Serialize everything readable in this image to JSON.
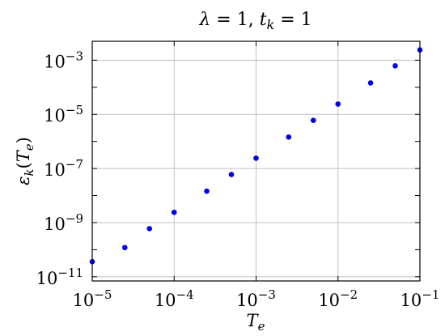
{
  "chart_data": {
    "type": "scatter",
    "title": "λ = 1, t_k = 1",
    "title_parts": [
      {
        "t": "λ",
        "italic": true
      },
      {
        "t": " = 1, ",
        "italic": false
      },
      {
        "t": "t",
        "italic": true
      },
      {
        "t": "k",
        "italic": true,
        "sub": true
      },
      {
        "t": " = 1",
        "italic": false
      }
    ],
    "xlabel": "T_e",
    "xlabel_parts": [
      {
        "t": "T",
        "italic": true
      },
      {
        "t": "e",
        "italic": true,
        "sub": true
      }
    ],
    "ylabel": "ε_k(T_e)",
    "ylabel_parts": [
      {
        "t": "ε",
        "italic": true
      },
      {
        "t": "k",
        "italic": true,
        "sub": true
      },
      {
        "t": "(",
        "italic": false
      },
      {
        "t": "T",
        "italic": true
      },
      {
        "t": "e",
        "italic": true,
        "sub": true
      },
      {
        "t": ")",
        "italic": false
      }
    ],
    "x_scale": "log",
    "y_scale": "log",
    "xlim": [
      1e-05,
      0.1
    ],
    "ylim": [
      7e-12,
      0.005
    ],
    "x_ticks": [
      {
        "value": 1e-05,
        "base": "10",
        "exp": "−5"
      },
      {
        "value": 0.0001,
        "base": "10",
        "exp": "−4"
      },
      {
        "value": 0.001,
        "base": "10",
        "exp": "−3"
      },
      {
        "value": 0.01,
        "base": "10",
        "exp": "−2"
      },
      {
        "value": 0.1,
        "base": "10",
        "exp": "−1"
      }
    ],
    "y_ticks": [
      {
        "value": 1e-11,
        "base": "10",
        "exp": "−11"
      },
      {
        "value": 1e-09,
        "base": "10",
        "exp": "−9"
      },
      {
        "value": 1e-07,
        "base": "10",
        "exp": "−7"
      },
      {
        "value": 1e-05,
        "base": "10",
        "exp": "−5"
      },
      {
        "value": 0.001,
        "base": "10",
        "exp": "−3"
      }
    ],
    "grid": true,
    "legend": "none",
    "series": [
      {
        "color": "#0000ee",
        "x": [
          1e-05,
          2.5e-05,
          5e-05,
          0.0001,
          0.00025,
          0.0005,
          0.001,
          0.0025,
          0.005,
          0.01,
          0.025,
          0.05,
          0.1
        ],
        "y": [
          3.6e-11,
          1.2e-10,
          6e-10,
          2.4e-09,
          1.45e-08,
          6e-08,
          2.4e-07,
          1.45e-06,
          6e-06,
          2.4e-05,
          0.000145,
          0.00062,
          0.0024
        ]
      }
    ]
  }
}
